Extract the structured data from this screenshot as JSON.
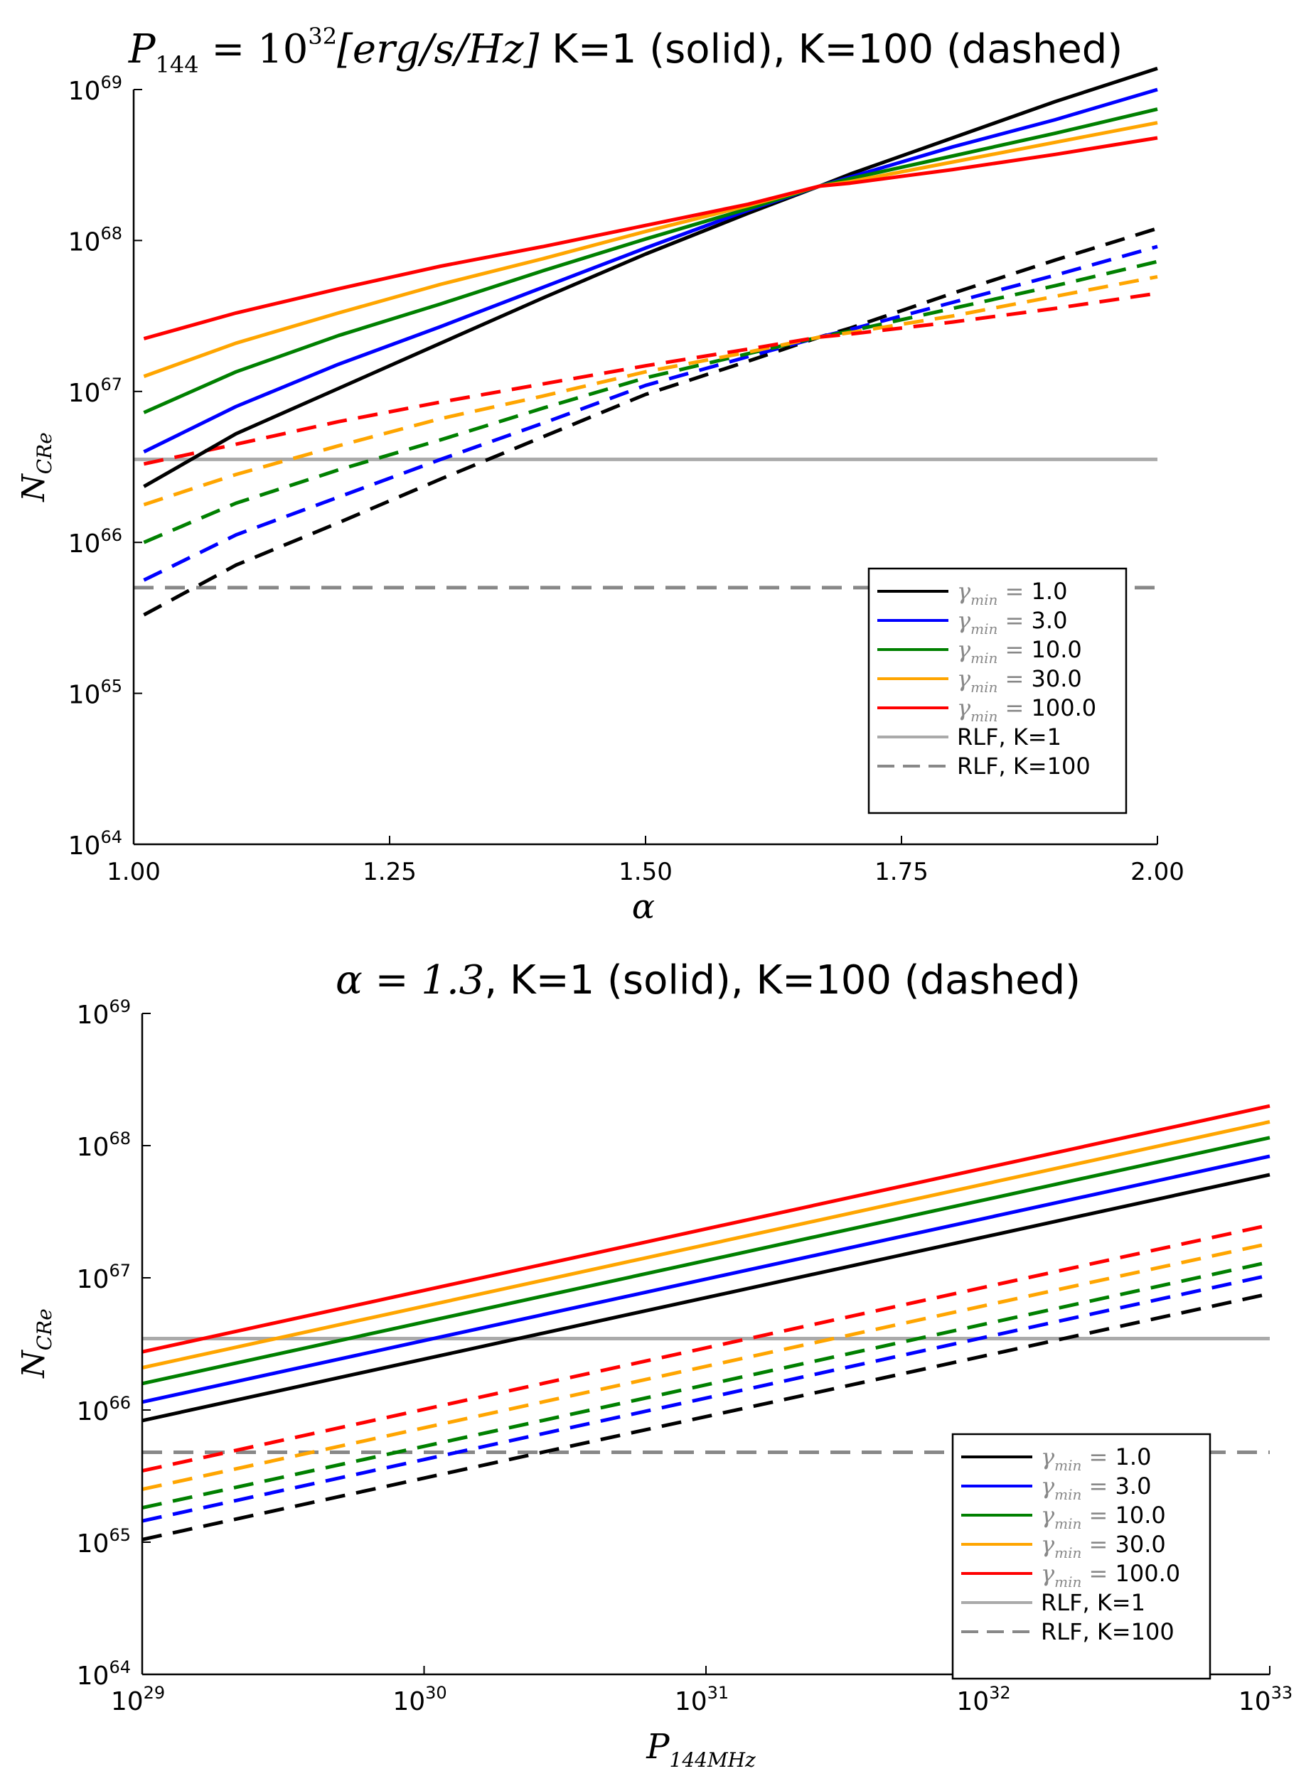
{
  "chart_data": [
    {
      "type": "line",
      "title_math": "P144 = 10^32[erg/s/Hz]",
      "title_plain": " K=1 (solid), K=100 (dashed)",
      "title_parts": {
        "sym": "P",
        "sub": "144",
        "eq": " = 10",
        "sup": "32",
        "unit": "[erg/s/Hz]"
      },
      "xlabel": "α",
      "ylabel": "N_CRe",
      "ylabel_parts": {
        "sym": "N",
        "sub": "CRe"
      },
      "xscale": "linear",
      "yscale": "log",
      "xlim": [
        1.0,
        2.0
      ],
      "ylim_exp": [
        64,
        69
      ],
      "xticks": [
        1.0,
        1.25,
        1.5,
        1.75,
        2.0
      ],
      "xtick_labels": [
        "1.00",
        "1.25",
        "1.50",
        "1.75",
        "2.00"
      ],
      "ytick_exps": [
        64,
        65,
        66,
        67,
        68,
        69
      ],
      "legend_position": "lower-right",
      "x": [
        1.01,
        1.1,
        1.2,
        1.3,
        1.4,
        1.5,
        1.6,
        1.67,
        1.7,
        1.8,
        1.9,
        2.0
      ],
      "series": [
        {
          "name": "γmin = 1.0",
          "gamma_label": "1.0",
          "color": "#000000",
          "style": "solid",
          "log10_values": [
            66.37,
            66.72,
            67.02,
            67.32,
            67.62,
            67.91,
            68.18,
            68.36,
            68.44,
            68.68,
            68.92,
            69.14
          ]
        },
        {
          "name": "γmin = 3.0",
          "gamma_label": "3.0",
          "color": "#0000ff",
          "style": "solid",
          "log10_values": [
            66.6,
            66.9,
            67.18,
            67.43,
            67.69,
            67.95,
            68.2,
            68.36,
            68.42,
            68.62,
            68.8,
            69.0
          ]
        },
        {
          "name": "γmin = 10.0",
          "gamma_label": "10.0",
          "color": "#008000",
          "style": "solid",
          "log10_values": [
            66.86,
            67.13,
            67.37,
            67.58,
            67.8,
            68.01,
            68.21,
            68.36,
            68.41,
            68.56,
            68.71,
            68.87
          ]
        },
        {
          "name": "γmin = 30.0",
          "gamma_label": "30.0",
          "color": "#ffa500",
          "style": "solid",
          "log10_values": [
            67.1,
            67.32,
            67.52,
            67.71,
            67.88,
            68.06,
            68.23,
            68.36,
            68.39,
            68.52,
            68.65,
            68.78
          ]
        },
        {
          "name": "γmin = 100.0",
          "gamma_label": "100.0",
          "color": "#ff0000",
          "style": "solid",
          "log10_values": [
            67.35,
            67.52,
            67.68,
            67.83,
            67.96,
            68.1,
            68.24,
            68.36,
            68.38,
            68.47,
            68.57,
            68.68
          ]
        },
        {
          "name": "γmin = 1.0 (K=100)",
          "color": "#000000",
          "style": "dashed",
          "in_legend": false,
          "log10_values": [
            65.52,
            65.85,
            66.13,
            66.42,
            66.7,
            66.98,
            67.2,
            67.36,
            67.42,
            67.65,
            67.87,
            68.08
          ]
        },
        {
          "name": "γmin = 3.0 (K=100)",
          "color": "#0000ff",
          "style": "dashed",
          "in_legend": false,
          "log10_values": [
            65.75,
            66.05,
            66.3,
            66.55,
            66.79,
            67.04,
            67.23,
            67.36,
            67.41,
            67.59,
            67.77,
            67.96
          ]
        },
        {
          "name": "γmin = 10.0 (K=100)",
          "color": "#008000",
          "style": "dashed",
          "in_legend": false,
          "log10_values": [
            66.0,
            66.26,
            66.48,
            66.68,
            66.89,
            67.09,
            67.25,
            67.36,
            67.4,
            67.55,
            67.7,
            67.86
          ]
        },
        {
          "name": "γmin = 30.0 (K=100)",
          "color": "#ffa500",
          "style": "dashed",
          "in_legend": false,
          "log10_values": [
            66.25,
            66.45,
            66.64,
            66.82,
            66.97,
            67.13,
            67.26,
            67.36,
            67.39,
            67.5,
            67.63,
            67.76
          ]
        },
        {
          "name": "γmin = 100.0 (K=100)",
          "color": "#ff0000",
          "style": "dashed",
          "in_legend": false,
          "log10_values": [
            66.52,
            66.65,
            66.8,
            66.93,
            67.05,
            67.17,
            67.28,
            67.36,
            67.38,
            67.46,
            67.55,
            67.65
          ]
        }
      ],
      "hlines": [
        {
          "name": "RLF, K=1",
          "color": "#aaaaaa",
          "style": "solid",
          "log10_value": 66.55
        },
        {
          "name": "RLF, K=100",
          "color": "#888888",
          "style": "dashed",
          "log10_value": 65.7
        }
      ]
    },
    {
      "type": "line",
      "title_math": "α = 1.3",
      "title_plain": ", K=1 (solid), K=100 (dashed)",
      "xlabel": "P144MHz",
      "xlabel_parts": {
        "sym": "P",
        "sub": "144MHz"
      },
      "ylabel": "N_CRe",
      "ylabel_parts": {
        "sym": "N",
        "sub": "CRe"
      },
      "xscale": "log",
      "yscale": "log",
      "xlim_exp": [
        29,
        33
      ],
      "ylim_exp": [
        64,
        69
      ],
      "xtick_exps": [
        29,
        30,
        31,
        32,
        33
      ],
      "ytick_exps": [
        64,
        65,
        66,
        67,
        68,
        69
      ],
      "legend_position": "lower-right",
      "log10_x": [
        29,
        33
      ],
      "series": [
        {
          "name": "γmin = 1.0",
          "gamma_label": "1.0",
          "color": "#000000",
          "style": "solid",
          "log10_values": [
            65.92,
            67.78
          ]
        },
        {
          "name": "γmin = 3.0",
          "gamma_label": "3.0",
          "color": "#0000ff",
          "style": "solid",
          "log10_values": [
            66.06,
            67.92
          ]
        },
        {
          "name": "γmin = 10.0",
          "gamma_label": "10.0",
          "color": "#008000",
          "style": "solid",
          "log10_values": [
            66.2,
            68.06
          ]
        },
        {
          "name": "γmin = 30.0",
          "gamma_label": "30.0",
          "color": "#ffa500",
          "style": "solid",
          "log10_values": [
            66.32,
            68.18
          ]
        },
        {
          "name": "γmin = 100.0",
          "gamma_label": "100.0",
          "color": "#ff0000",
          "style": "solid",
          "log10_values": [
            66.44,
            68.3
          ]
        },
        {
          "name": "γmin = 1.0 (K=100)",
          "color": "#000000",
          "style": "dashed",
          "in_legend": false,
          "log10_values": [
            65.02,
            66.88
          ]
        },
        {
          "name": "γmin = 3.0 (K=100)",
          "color": "#0000ff",
          "style": "dashed",
          "in_legend": false,
          "log10_values": [
            65.16,
            67.02
          ]
        },
        {
          "name": "γmin = 10.0 (K=100)",
          "color": "#008000",
          "style": "dashed",
          "in_legend": false,
          "log10_values": [
            65.26,
            67.12
          ]
        },
        {
          "name": "γmin = 30.0 (K=100)",
          "color": "#ffa500",
          "style": "dashed",
          "in_legend": false,
          "log10_values": [
            65.4,
            67.26
          ]
        },
        {
          "name": "γmin = 100.0 (K=100)",
          "color": "#ff0000",
          "style": "dashed",
          "in_legend": false,
          "log10_values": [
            65.54,
            67.4
          ]
        }
      ],
      "hlines": [
        {
          "name": "RLF, K=1",
          "color": "#aaaaaa",
          "style": "solid",
          "log10_value": 66.54
        },
        {
          "name": "RLF, K=100",
          "color": "#888888",
          "style": "dashed",
          "log10_value": 65.68
        }
      ]
    }
  ],
  "legend": {
    "gamma_symbol": "γ",
    "gamma_sub": "min",
    "equals": " = "
  }
}
